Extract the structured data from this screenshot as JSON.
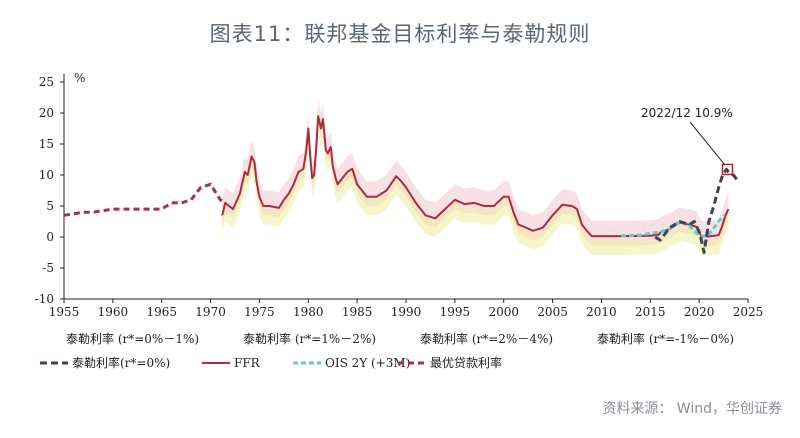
{
  "title": "图表11：联邦基金目标利率与泰勒规则",
  "source": "资料来源： Wind，华创证券",
  "chart_data": {
    "type": "line",
    "ylabel": "%",
    "xlim": [
      1955,
      2025
    ],
    "ylim": [
      -10,
      25
    ],
    "x_ticks": [
      "1955",
      "1960",
      "1965",
      "1970",
      "1975",
      "1980",
      "1985",
      "1990",
      "1995",
      "2000",
      "2005",
      "2010",
      "2015",
      "2020",
      "2025"
    ],
    "y_ticks": [
      "25",
      "20",
      "15",
      "10",
      "5",
      "0",
      "-5",
      "-10"
    ],
    "rule_labels": [
      "泰勒利率 (r*=0%－1%)",
      "泰勒利率 (r*=1%－2%)",
      "泰勒利率 (r*=2%－4%)",
      "泰勒利率 (r*=-1%－0%)"
    ],
    "annotation": "2022/12 10.9%",
    "colors": {
      "taylor": "#3d4257",
      "ffr": "#b02a3c",
      "ois": "#5fcfc7",
      "prime": "#a8304a",
      "band_pink": "#f2c7cf",
      "band_yellow": "#ecef9c"
    },
    "series": [
      {
        "name": "泰勒利率(r*=0%)",
        "x": [
          2015.5,
          2016,
          2017,
          2018,
          2019,
          2019.5,
          2020.1,
          2020.5,
          2021,
          2021.5,
          2022,
          2022.4,
          2022.8,
          2023,
          2023.5,
          2024
        ],
        "values": [
          0,
          -0.5,
          1.5,
          2.5,
          2,
          2.5,
          0.5,
          -2.5,
          2.5,
          5,
          8,
          10,
          10.9,
          10.5,
          10,
          9
        ]
      },
      {
        "name": "FFR",
        "x": [
          1971.2,
          1971.5,
          1972.3,
          1973,
          1973.5,
          1973.8,
          1974.2,
          1974.5,
          1974.7,
          1975,
          1975.4,
          1976,
          1977,
          1977.5,
          1978,
          1978.5,
          1979,
          1979.5,
          1979.8,
          1980,
          1980.2,
          1980.4,
          1980.6,
          1980.8,
          1981,
          1981.3,
          1981.5,
          1981.8,
          1982,
          1982.3,
          1982.5,
          1982.8,
          1983,
          1984,
          1984.5,
          1985,
          1986,
          1987,
          1988,
          1989,
          1989.5,
          1990,
          1991,
          1992,
          1993,
          1994,
          1995,
          1996,
          1997,
          1998,
          1999,
          2000,
          2000.5,
          2001,
          2001.5,
          2002,
          2003,
          2004,
          2005,
          2006,
          2007,
          2007.5,
          2008,
          2008.5,
          2009,
          2010,
          2012,
          2015,
          2015.9,
          2016,
          2017,
          2018,
          2019,
          2019.8,
          2020.2,
          2021,
          2022,
          2022.3,
          2022.7,
          2023
        ],
        "values": [
          3.5,
          5.5,
          4.5,
          7,
          10.5,
          10,
          13,
          12,
          9,
          6.5,
          5,
          5,
          4.7,
          6,
          7,
          8.5,
          10.5,
          11,
          14,
          17.5,
          13,
          9.5,
          10,
          14,
          19.5,
          17.5,
          19,
          14,
          13.5,
          14.5,
          11.5,
          9.5,
          8.5,
          10.5,
          11,
          8.5,
          6.5,
          6.5,
          7.5,
          9.8,
          9,
          8,
          5.5,
          3.5,
          3,
          4.5,
          6,
          5.3,
          5.5,
          5,
          5,
          6.5,
          6.5,
          4,
          2,
          1.7,
          1,
          1.5,
          3.5,
          5.2,
          5,
          4.5,
          2,
          1,
          0.15,
          0.15,
          0.15,
          0.2,
          0.4,
          0.7,
          1.3,
          2.3,
          2,
          1.6,
          0.1,
          0.1,
          0.3,
          1.5,
          3.5,
          4.5
        ]
      },
      {
        "name": "OIS 2Y (+3M)",
        "x": [
          2012,
          2014,
          2015,
          2016,
          2017,
          2018,
          2019,
          2020,
          2020.5,
          2021,
          2022,
          2022.5
        ],
        "values": [
          0.2,
          0.3,
          0.6,
          0.8,
          1.3,
          2.5,
          1.8,
          0.2,
          0.1,
          0.4,
          2.5,
          3.5
        ]
      },
      {
        "name": "最优贷款利率",
        "x": [
          1955,
          1957,
          1958,
          1960,
          1962,
          1965,
          1966,
          1967,
          1968,
          1969,
          1970,
          1971,
          1971.5
        ],
        "values": [
          3.5,
          4,
          4,
          4.5,
          4.5,
          4.5,
          5.5,
          5.5,
          6,
          8,
          8.5,
          6,
          5.5
        ]
      }
    ]
  }
}
